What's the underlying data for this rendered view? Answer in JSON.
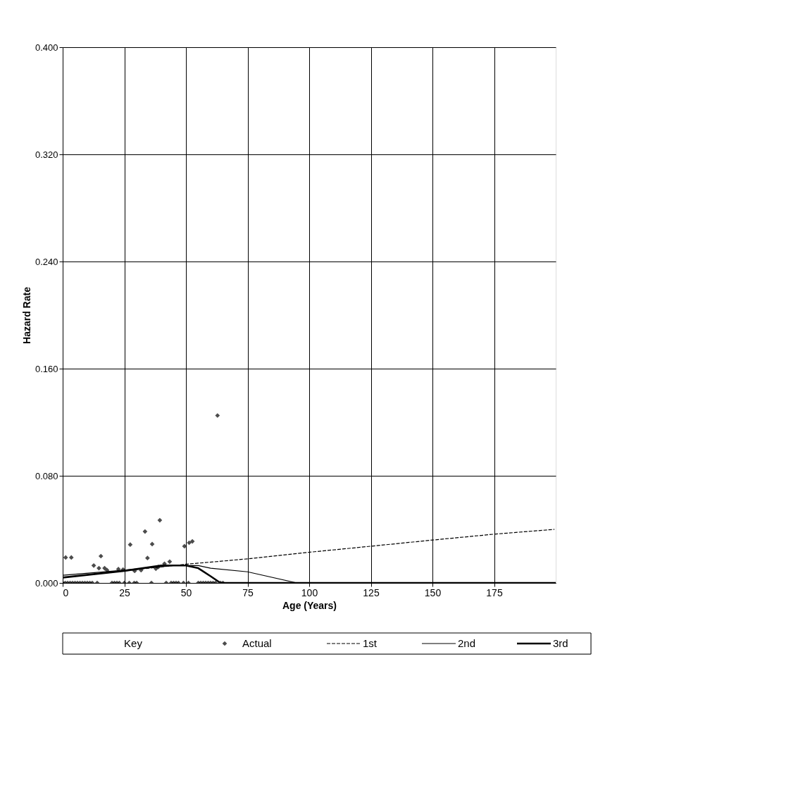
{
  "chart_data": {
    "type": "line",
    "xlabel": "Age (Years)",
    "ylabel": "Hazard Rate",
    "legend_title": "Key",
    "legend": "bottom",
    "grid": true,
    "xlim": [
      0,
      200
    ],
    "xticks": [
      0,
      25,
      50,
      75,
      100,
      125,
      150,
      175
    ],
    "ylim": [
      0,
      0.4
    ],
    "yticks": [
      {
        "value": 0,
        "label": "0.000"
      },
      {
        "value": 0.08,
        "label": "0.080"
      },
      {
        "value": 0.16,
        "label": "0.160"
      },
      {
        "value": 0.24,
        "label": "0.240"
      },
      {
        "value": 0.32,
        "label": "0.320"
      },
      {
        "value": 0.4,
        "label": "0.400"
      }
    ],
    "series": [
      {
        "name": "Actual",
        "type": "scatter",
        "marker": "diamond",
        "color": "#000000",
        "x": [
          1.2,
          3.5,
          12.6,
          14.7,
          15.5,
          17,
          18,
          22.6,
          24.5,
          27.4,
          29.2,
          31.8,
          33.4,
          34.4,
          36.3,
          37.8,
          38.8,
          39.4,
          41.3,
          43.4,
          49.4,
          51.3,
          52.6,
          62.8,
          0,
          1,
          2,
          3,
          4,
          5,
          6,
          7,
          8,
          9,
          10,
          11,
          12,
          14,
          20,
          21,
          22,
          23,
          25,
          27,
          29,
          30,
          36,
          42,
          44,
          45,
          46,
          47,
          49,
          51,
          55,
          56,
          57,
          58,
          59,
          60,
          61,
          62,
          64,
          65
        ],
        "values": [
          0.019,
          0.019,
          0.013,
          0.011,
          0.02,
          0.011,
          0.0095,
          0.0103,
          0.01,
          0.0286,
          0.009,
          0.0095,
          0.0384,
          0.0186,
          0.029,
          0.0106,
          0.0119,
          0.0468,
          0.0143,
          0.0159,
          0.0274,
          0.03,
          0.031,
          0.125,
          0,
          0,
          0,
          0,
          0,
          0,
          0,
          0,
          0,
          0,
          0,
          0,
          0,
          0,
          0,
          0,
          0,
          0,
          0,
          0,
          0,
          0,
          0,
          0,
          0,
          0,
          0,
          0,
          0,
          0,
          0,
          0,
          0,
          0,
          0,
          0,
          0,
          0,
          0,
          0
        ]
      },
      {
        "name": "1st",
        "line_style": "dashed",
        "color": "#000000",
        "x": [
          0,
          25,
          50,
          63,
          75,
          100,
          125,
          150,
          175,
          199.5
        ],
        "values": [
          0.004,
          0.009,
          0.014,
          0.016,
          0.018,
          0.0229,
          0.0274,
          0.032,
          0.0364,
          0.04
        ]
      },
      {
        "name": "2nd",
        "line_style": "solid",
        "color": "#000000",
        "x": [
          0,
          25,
          45,
          55,
          60,
          75,
          95,
          200
        ],
        "values": [
          0.0057,
          0.0095,
          0.013,
          0.013,
          0.011,
          0.0083,
          0,
          0
        ]
      },
      {
        "name": "3rd",
        "line_style": "solid",
        "color": "#000000",
        "x": [
          0,
          25,
          40,
          50,
          55,
          60,
          64,
          200
        ],
        "values": [
          0.004,
          0.009,
          0.013,
          0.013,
          0.011,
          0.005,
          0,
          0
        ]
      }
    ]
  }
}
